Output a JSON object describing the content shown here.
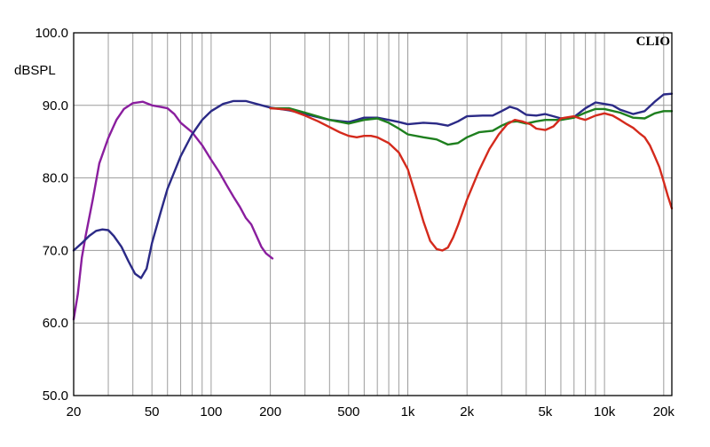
{
  "chart_data": {
    "type": "line",
    "brand": "CLIO",
    "ylabel": "dBSPL",
    "x_scale": "log",
    "xlim": [
      20,
      22000
    ],
    "ylim": [
      50,
      100
    ],
    "y_ticks": [
      {
        "value": 100,
        "label": "100.0"
      },
      {
        "value": 90,
        "label": "90.0"
      },
      {
        "value": 80,
        "label": "80.0"
      },
      {
        "value": 70,
        "label": "70.0"
      },
      {
        "value": 60,
        "label": "60.0"
      },
      {
        "value": 50,
        "label": "50.0"
      }
    ],
    "x_ticks": [
      {
        "value": 20,
        "label": "20"
      },
      {
        "value": 50,
        "label": "50"
      },
      {
        "value": 100,
        "label": "100"
      },
      {
        "value": 200,
        "label": "200"
      },
      {
        "value": 500,
        "label": "500"
      },
      {
        "value": 1000,
        "label": "1k"
      },
      {
        "value": 2000,
        "label": "2k"
      },
      {
        "value": 5000,
        "label": "5k"
      },
      {
        "value": 10000,
        "label": "10k"
      },
      {
        "value": 20000,
        "label": "20k"
      }
    ],
    "grid": true,
    "series": [
      {
        "color": "#8a1e9e",
        "points": [
          [
            20,
            60.5
          ],
          [
            21,
            64
          ],
          [
            22,
            69
          ],
          [
            23,
            72
          ],
          [
            25,
            77
          ],
          [
            27,
            82
          ],
          [
            30,
            85.5
          ],
          [
            33,
            88
          ],
          [
            36,
            89.5
          ],
          [
            40,
            90.3
          ],
          [
            45,
            90.5
          ],
          [
            50,
            90
          ],
          [
            55,
            89.8
          ],
          [
            60,
            89.6
          ],
          [
            65,
            88.8
          ],
          [
            70,
            87.6
          ],
          [
            80,
            86.3
          ],
          [
            90,
            84.5
          ],
          [
            100,
            82.5
          ],
          [
            110,
            80.8
          ],
          [
            120,
            79
          ],
          [
            130,
            77.4
          ],
          [
            140,
            76
          ],
          [
            150,
            74.5
          ],
          [
            160,
            73.6
          ],
          [
            170,
            72
          ],
          [
            180,
            70.5
          ],
          [
            190,
            69.6
          ],
          [
            205,
            68.9
          ]
        ]
      },
      {
        "color": "#2b2a86",
        "points": [
          [
            20,
            70
          ],
          [
            22,
            71
          ],
          [
            24,
            72
          ],
          [
            26,
            72.7
          ],
          [
            28,
            72.9
          ],
          [
            30,
            72.8
          ],
          [
            32,
            72
          ],
          [
            35,
            70.5
          ],
          [
            38,
            68.5
          ],
          [
            41,
            66.8
          ],
          [
            44,
            66.2
          ],
          [
            47,
            67.5
          ],
          [
            50,
            71
          ],
          [
            55,
            75
          ],
          [
            60,
            78.5
          ],
          [
            70,
            83
          ],
          [
            80,
            86
          ],
          [
            90,
            88
          ],
          [
            100,
            89.2
          ],
          [
            115,
            90.2
          ],
          [
            130,
            90.6
          ],
          [
            150,
            90.6
          ],
          [
            170,
            90.2
          ],
          [
            200,
            89.7
          ],
          [
            250,
            89.3
          ],
          [
            300,
            88.8
          ],
          [
            400,
            88
          ],
          [
            500,
            87.7
          ],
          [
            550,
            88
          ],
          [
            600,
            88.3
          ],
          [
            700,
            88.3
          ],
          [
            800,
            88
          ],
          [
            900,
            87.7
          ],
          [
            1000,
            87.4
          ],
          [
            1200,
            87.6
          ],
          [
            1400,
            87.5
          ],
          [
            1600,
            87.2
          ],
          [
            1800,
            87.8
          ],
          [
            2000,
            88.5
          ],
          [
            2400,
            88.6
          ],
          [
            2700,
            88.6
          ],
          [
            3000,
            89.2
          ],
          [
            3300,
            89.8
          ],
          [
            3600,
            89.5
          ],
          [
            4000,
            88.7
          ],
          [
            4500,
            88.6
          ],
          [
            5000,
            88.8
          ],
          [
            5500,
            88.5
          ],
          [
            6000,
            88.2
          ],
          [
            7000,
            88.4
          ],
          [
            8000,
            89.6
          ],
          [
            9000,
            90.4
          ],
          [
            10000,
            90.2
          ],
          [
            11000,
            90
          ],
          [
            12000,
            89.4
          ],
          [
            14000,
            88.8
          ],
          [
            16000,
            89.2
          ],
          [
            18000,
            90.5
          ],
          [
            20000,
            91.5
          ],
          [
            22000,
            91.6
          ]
        ]
      },
      {
        "color": "#1e7f1e",
        "points": [
          [
            200,
            89.6
          ],
          [
            250,
            89.6
          ],
          [
            300,
            89
          ],
          [
            400,
            88
          ],
          [
            500,
            87.5
          ],
          [
            600,
            88
          ],
          [
            700,
            88.2
          ],
          [
            800,
            87.6
          ],
          [
            900,
            86.8
          ],
          [
            1000,
            86
          ],
          [
            1200,
            85.6
          ],
          [
            1400,
            85.3
          ],
          [
            1600,
            84.6
          ],
          [
            1800,
            84.8
          ],
          [
            2000,
            85.6
          ],
          [
            2300,
            86.3
          ],
          [
            2700,
            86.5
          ],
          [
            3000,
            87.2
          ],
          [
            3300,
            87.7
          ],
          [
            3600,
            87.8
          ],
          [
            4000,
            87.5
          ],
          [
            4500,
            87.8
          ],
          [
            5000,
            88
          ],
          [
            6000,
            88
          ],
          [
            7000,
            88.3
          ],
          [
            8000,
            89
          ],
          [
            9000,
            89.5
          ],
          [
            10000,
            89.5
          ],
          [
            12000,
            89
          ],
          [
            14000,
            88.3
          ],
          [
            16000,
            88.2
          ],
          [
            18000,
            88.9
          ],
          [
            20000,
            89.2
          ],
          [
            22000,
            89.2
          ]
        ]
      },
      {
        "color": "#d42a1c",
        "points": [
          [
            200,
            89.6
          ],
          [
            250,
            89.4
          ],
          [
            300,
            88.6
          ],
          [
            350,
            87.8
          ],
          [
            400,
            87
          ],
          [
            450,
            86.3
          ],
          [
            500,
            85.8
          ],
          [
            550,
            85.6
          ],
          [
            600,
            85.8
          ],
          [
            650,
            85.8
          ],
          [
            700,
            85.6
          ],
          [
            800,
            84.8
          ],
          [
            900,
            83.5
          ],
          [
            1000,
            81.2
          ],
          [
            1100,
            77.5
          ],
          [
            1200,
            74
          ],
          [
            1300,
            71.3
          ],
          [
            1400,
            70.2
          ],
          [
            1500,
            70
          ],
          [
            1600,
            70.4
          ],
          [
            1700,
            71.8
          ],
          [
            1800,
            73.5
          ],
          [
            2000,
            77
          ],
          [
            2300,
            81
          ],
          [
            2600,
            84
          ],
          [
            2900,
            86
          ],
          [
            3200,
            87.4
          ],
          [
            3500,
            88
          ],
          [
            3800,
            87.8
          ],
          [
            4200,
            87.4
          ],
          [
            4500,
            86.8
          ],
          [
            5000,
            86.6
          ],
          [
            5500,
            87.1
          ],
          [
            6000,
            88.2
          ],
          [
            7000,
            88.5
          ],
          [
            7500,
            88.2
          ],
          [
            8000,
            88
          ],
          [
            9000,
            88.6
          ],
          [
            10000,
            88.9
          ],
          [
            11000,
            88.6
          ],
          [
            12000,
            88
          ],
          [
            13000,
            87.4
          ],
          [
            14000,
            86.9
          ],
          [
            15000,
            86.2
          ],
          [
            16000,
            85.6
          ],
          [
            17000,
            84.5
          ],
          [
            18000,
            83
          ],
          [
            19000,
            81.5
          ],
          [
            20000,
            79.5
          ],
          [
            21000,
            77.5
          ],
          [
            22000,
            75.8
          ]
        ]
      }
    ]
  }
}
